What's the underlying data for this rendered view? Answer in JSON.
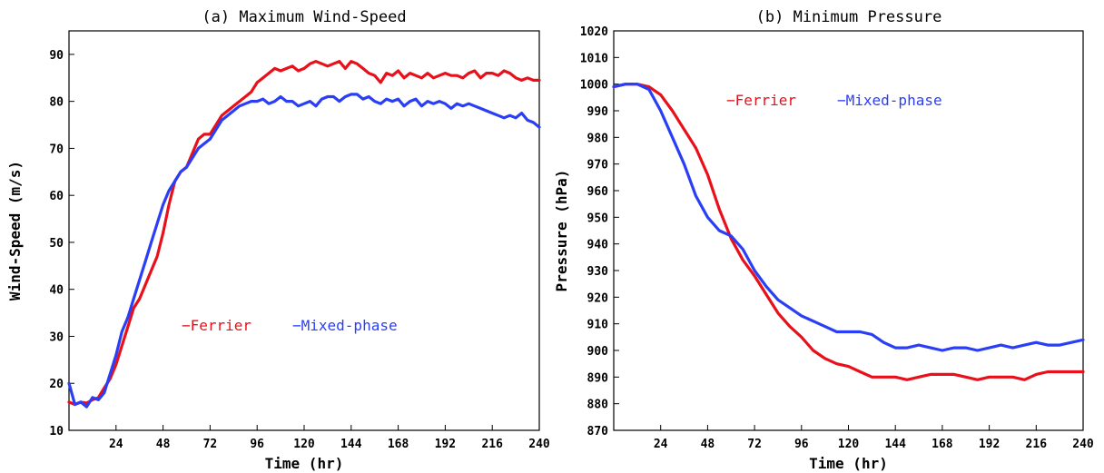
{
  "chart_data": [
    {
      "type": "line",
      "title": "(a) Maximum Wind-Speed",
      "xlabel": "Time (hr)",
      "ylabel": "Wind-Speed (m/s)",
      "xlim": [
        0,
        240
      ],
      "ylim": [
        10,
        95
      ],
      "xticks": [
        24,
        48,
        72,
        96,
        120,
        144,
        168,
        192,
        216,
        240
      ],
      "yticks": [
        10,
        20,
        30,
        40,
        50,
        60,
        70,
        80,
        90
      ],
      "legend_position": "center",
      "series": [
        {
          "name": "Ferrier",
          "color": "#e8101a",
          "x": [
            0,
            3,
            6,
            9,
            12,
            15,
            18,
            21,
            24,
            27,
            30,
            33,
            36,
            39,
            42,
            45,
            48,
            51,
            54,
            57,
            60,
            63,
            66,
            69,
            72,
            75,
            78,
            81,
            84,
            87,
            90,
            93,
            96,
            99,
            102,
            105,
            108,
            111,
            114,
            117,
            120,
            123,
            126,
            129,
            132,
            135,
            138,
            141,
            144,
            147,
            150,
            153,
            156,
            159,
            162,
            165,
            168,
            171,
            174,
            177,
            180,
            183,
            186,
            189,
            192,
            195,
            198,
            201,
            204,
            207,
            210,
            213,
            216,
            219,
            222,
            225,
            228,
            231,
            234,
            237,
            240
          ],
          "values": [
            16,
            15.5,
            16,
            15.8,
            16.5,
            17,
            19,
            21,
            24,
            28,
            32,
            36,
            38,
            41,
            44,
            47,
            52,
            58,
            63,
            65,
            66,
            69,
            72,
            73,
            73,
            75,
            77,
            78,
            79,
            80,
            81,
            82,
            84,
            85,
            86,
            87,
            86.5,
            87,
            87.5,
            86.5,
            87,
            88,
            88.5,
            88,
            87.5,
            88,
            88.5,
            87,
            88.5,
            88,
            87,
            86,
            85.5,
            84,
            86,
            85.5,
            86.5,
            85,
            86,
            85.5,
            85,
            86,
            85,
            85.5,
            86,
            85.5,
            85.5,
            85,
            86,
            86.5,
            85,
            86,
            86,
            85.5,
            86.5,
            86,
            85,
            84.5,
            85,
            84.5,
            84.5
          ]
        },
        {
          "name": "Mixed-phase",
          "color": "#2a3ff5",
          "x": [
            0,
            3,
            6,
            9,
            12,
            15,
            18,
            21,
            24,
            27,
            30,
            33,
            36,
            39,
            42,
            45,
            48,
            51,
            54,
            57,
            60,
            63,
            66,
            69,
            72,
            75,
            78,
            81,
            84,
            87,
            90,
            93,
            96,
            99,
            102,
            105,
            108,
            111,
            114,
            117,
            120,
            123,
            126,
            129,
            132,
            135,
            138,
            141,
            144,
            147,
            150,
            153,
            156,
            159,
            162,
            165,
            168,
            171,
            174,
            177,
            180,
            183,
            186,
            189,
            192,
            195,
            198,
            201,
            204,
            207,
            210,
            213,
            216,
            219,
            222,
            225,
            228,
            231,
            234,
            237,
            240
          ],
          "values": [
            20,
            15.5,
            16,
            15,
            17,
            16.5,
            18,
            22,
            26,
            31,
            34,
            38,
            42,
            46,
            50,
            54,
            58,
            61,
            63,
            65,
            66,
            68,
            70,
            71,
            72,
            74,
            76,
            77,
            78,
            79,
            79.5,
            80,
            80,
            80.5,
            79.5,
            80,
            81,
            80,
            80,
            79,
            79.5,
            80,
            79,
            80.5,
            81,
            81,
            80,
            81,
            81.5,
            81.5,
            80.5,
            81,
            80,
            79.5,
            80.5,
            80,
            80.5,
            79,
            80,
            80.5,
            79,
            80,
            79.5,
            80,
            79.5,
            78.5,
            79.5,
            79,
            79.5,
            79,
            78.5,
            78,
            77.5,
            77,
            76.5,
            77,
            76.5,
            77.5,
            76,
            75.5,
            74.5
          ]
        }
      ]
    },
    {
      "type": "line",
      "title": "(b) Minimum Pressure",
      "xlabel": "Time (hr)",
      "ylabel": "Pressure (hPa)",
      "xlim": [
        0,
        240
      ],
      "ylim": [
        870,
        1020
      ],
      "xticks": [
        24,
        48,
        72,
        96,
        120,
        144,
        168,
        192,
        216,
        240
      ],
      "yticks": [
        870,
        880,
        890,
        900,
        910,
        920,
        930,
        940,
        950,
        960,
        970,
        980,
        990,
        1000,
        1010,
        1020
      ],
      "legend_position": "top",
      "series": [
        {
          "name": "Ferrier",
          "color": "#e8101a",
          "x": [
            0,
            6,
            12,
            18,
            24,
            30,
            36,
            42,
            48,
            54,
            60,
            66,
            72,
            78,
            84,
            90,
            96,
            102,
            108,
            114,
            120,
            126,
            132,
            138,
            144,
            150,
            156,
            162,
            168,
            174,
            180,
            186,
            192,
            198,
            204,
            210,
            216,
            222,
            228,
            234,
            240
          ],
          "values": [
            999,
            1000,
            1000,
            999,
            996,
            990,
            983,
            976,
            966,
            953,
            942,
            934,
            928,
            921,
            914,
            909,
            905,
            900,
            897,
            895,
            894,
            892,
            890,
            890,
            890,
            889,
            890,
            891,
            891,
            891,
            890,
            889,
            890,
            890,
            890,
            889,
            891,
            892,
            892,
            892,
            892
          ]
        },
        {
          "name": "Mixed-phase",
          "color": "#2a3ff5",
          "x": [
            0,
            6,
            12,
            18,
            24,
            30,
            36,
            42,
            48,
            54,
            60,
            66,
            72,
            78,
            84,
            90,
            96,
            102,
            108,
            114,
            120,
            126,
            132,
            138,
            144,
            150,
            156,
            162,
            168,
            174,
            180,
            186,
            192,
            198,
            204,
            210,
            216,
            222,
            228,
            234,
            240
          ],
          "values": [
            999,
            1000,
            1000,
            998,
            990,
            980,
            970,
            958,
            950,
            945,
            943,
            938,
            930,
            924,
            919,
            916,
            913,
            911,
            909,
            907,
            907,
            907,
            906,
            903,
            901,
            901,
            902,
            901,
            900,
            901,
            901,
            900,
            901,
            902,
            901,
            902,
            903,
            902,
            902,
            903,
            904
          ]
        }
      ]
    }
  ]
}
